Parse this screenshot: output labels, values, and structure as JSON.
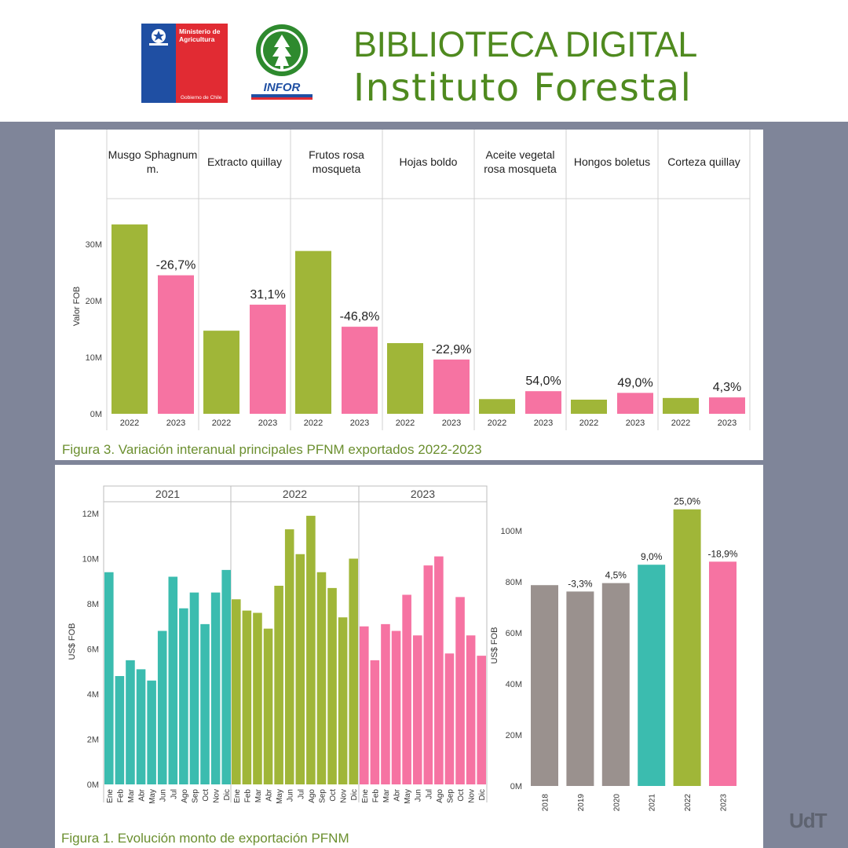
{
  "header": {
    "title": "BIBLIOTECA DIGITAL",
    "subtitle": "Instituto Forestal",
    "ministry_logo": {
      "line1": "Ministerio de",
      "line2": "Agricultura",
      "footer": "Gobierno de Chile"
    },
    "infor_logo": {
      "text": "INFOR"
    }
  },
  "colors": {
    "green": "#a0b638",
    "pink": "#f673a2",
    "teal": "#3bbcaf",
    "gray": "#9a918e",
    "title_green": "#4f8a1f"
  },
  "figure3": {
    "caption": "Figura 3. Variación interanual principales PFNM exportados 2022-2023",
    "chart_data": {
      "type": "bar",
      "ylabel": "Valor FOB",
      "ylim": [
        0,
        36000000
      ],
      "yticks": [
        "0M",
        "10M",
        "20M",
        "30M"
      ],
      "groups": [
        {
          "name": [
            "Musgo Sphagnum",
            "m."
          ],
          "values": [
            33500000,
            24500000
          ],
          "change": "-26,7%"
        },
        {
          "name": [
            "Extracto quillay"
          ],
          "values": [
            14700000,
            19300000
          ],
          "change": "31,1%"
        },
        {
          "name": [
            "Frutos rosa",
            "mosqueta"
          ],
          "values": [
            28800000,
            15400000
          ],
          "change": "-46,8%"
        },
        {
          "name": [
            "Hojas boldo"
          ],
          "values": [
            12500000,
            9600000
          ],
          "change": "-22,9%"
        },
        {
          "name": [
            "Aceite vegetal",
            "rosa mosqueta"
          ],
          "values": [
            2600000,
            4000000
          ],
          "change": "54,0%"
        },
        {
          "name": [
            "Hongos boletus"
          ],
          "values": [
            2500000,
            3700000
          ],
          "change": "49,0%"
        },
        {
          "name": [
            "Corteza quillay"
          ],
          "values": [
            2800000,
            2900000
          ],
          "change": "4,3%"
        }
      ],
      "x_categories": [
        "2022",
        "2023"
      ]
    }
  },
  "figure1": {
    "caption": "Figura 1.  Evolución monto de exportación PFNM",
    "chart_data": [
      {
        "type": "bar",
        "ylabel": "US$ FOB",
        "ylim": [
          0,
          13000000
        ],
        "yticks": [
          "0M",
          "2M",
          "4M",
          "6M",
          "8M",
          "10M",
          "12M"
        ],
        "months": [
          "Ene",
          "Feb",
          "Mar",
          "Abr",
          "May",
          "Jun",
          "Jul",
          "Ago",
          "Sep",
          "Oct",
          "Nov",
          "Dic"
        ],
        "series": [
          {
            "name": "2021",
            "values": [
              9400000,
              4800000,
              5500000,
              5100000,
              4600000,
              6800000,
              9200000,
              7800000,
              8500000,
              7100000,
              8500000,
              9500000
            ]
          },
          {
            "name": "2022",
            "values": [
              8200000,
              7700000,
              7600000,
              6900000,
              8800000,
              11300000,
              10200000,
              11900000,
              9400000,
              8700000,
              7400000,
              10000000
            ]
          },
          {
            "name": "2023",
            "values": [
              7000000,
              5500000,
              7100000,
              6800000,
              8400000,
              6600000,
              9700000,
              10100000,
              5800000,
              8300000,
              6600000,
              5700000
            ]
          }
        ]
      },
      {
        "type": "bar",
        "ylabel": "US$ FOB",
        "ylim": [
          0,
          114000000
        ],
        "yticks": [
          "0M",
          "20M",
          "40M",
          "60M",
          "80M",
          "100M"
        ],
        "categories": [
          "2018",
          "2019",
          "2020",
          "2021",
          "2022",
          "2023"
        ],
        "values": [
          78700000,
          76200000,
          79500000,
          86700000,
          108400000,
          87900000
        ],
        "labels": [
          "",
          "-3,3%",
          "4,5%",
          "9,0%",
          "25,0%",
          "-18,9%"
        ]
      }
    ]
  },
  "watermark": "UdT"
}
